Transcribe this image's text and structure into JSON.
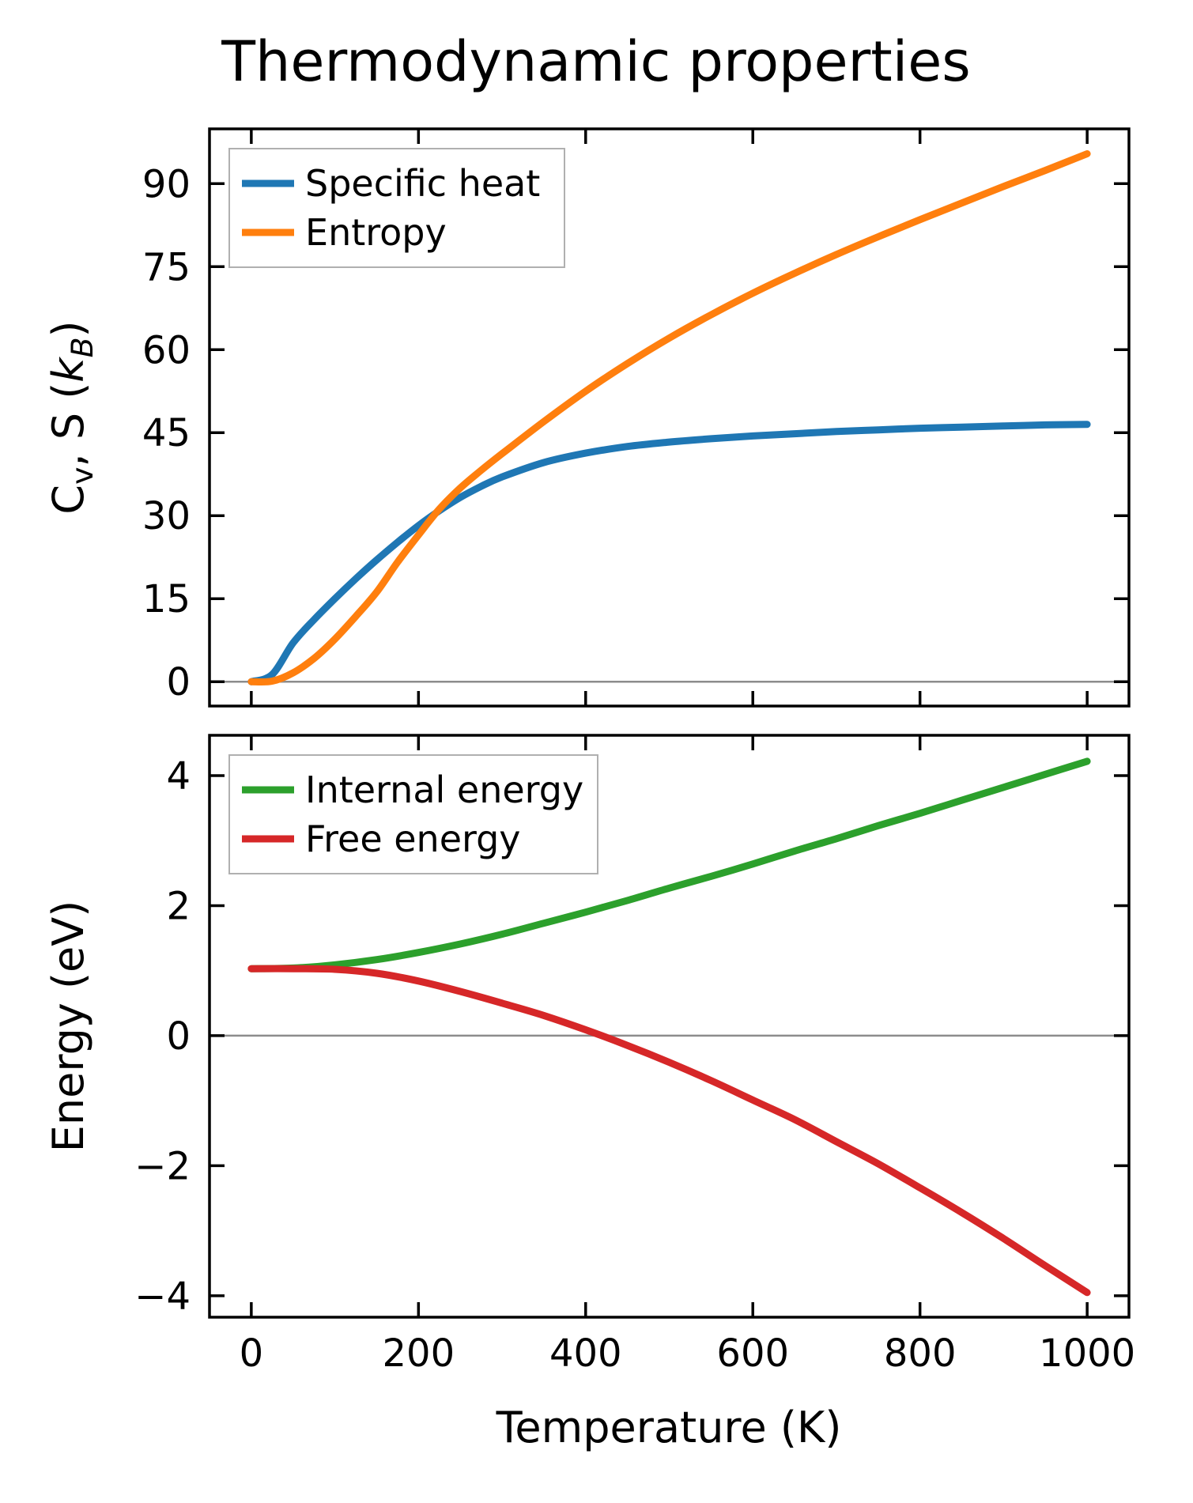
{
  "figure": {
    "title": "Thermodynamic properties",
    "xlabel": "Temperature (K)"
  },
  "colors": {
    "specific_heat": "#1f77b4",
    "entropy": "#ff7f0e",
    "internal_energy": "#2ca02c",
    "free_energy": "#d62728",
    "zero_line": "#8c8c8c",
    "spine": "#000000",
    "legend_border": "#b0b0b0"
  },
  "chart_data": [
    {
      "type": "line",
      "ylabel_parts": [
        {
          "t": "C"
        },
        {
          "t": "v",
          "sub": true
        },
        {
          "t": ", S ("
        },
        {
          "t": "k",
          "italic": true
        },
        {
          "t": "B",
          "sub": true,
          "italic": true
        },
        {
          "t": ")"
        }
      ],
      "xlim": [
        -50,
        1050
      ],
      "ylim": [
        -4.4,
        99.9
      ],
      "xticks": {
        "positions": [
          0,
          200,
          400,
          600,
          800,
          1000
        ],
        "labels": []
      },
      "yticks": {
        "positions": [
          0,
          15,
          30,
          45,
          60,
          75,
          90
        ],
        "labels": [
          "0",
          "15",
          "30",
          "45",
          "60",
          "75",
          "90"
        ]
      },
      "zero_line": true,
      "grid": false,
      "legend_position": "upper left",
      "x": [
        0,
        25,
        50,
        75,
        100,
        125,
        150,
        175,
        200,
        225,
        250,
        275,
        300,
        350,
        400,
        450,
        500,
        550,
        600,
        650,
        700,
        750,
        800,
        850,
        900,
        950,
        1000
      ],
      "series": [
        {
          "name": "Specific heat",
          "color_key": "specific_heat",
          "values": [
            0,
            1.3,
            7.0,
            11.2,
            15.0,
            18.6,
            22.0,
            25.2,
            28.2,
            30.9,
            33.3,
            35.3,
            37.0,
            39.6,
            41.3,
            42.5,
            43.3,
            43.9,
            44.4,
            44.8,
            45.2,
            45.5,
            45.8,
            46.0,
            46.2,
            46.4,
            46.5
          ]
        },
        {
          "name": "Entropy",
          "color_key": "entropy",
          "values": [
            0,
            0.1,
            1.6,
            4.2,
            7.7,
            11.8,
            16.2,
            21.6,
            26.5,
            31.2,
            35.0,
            38.2,
            41.2,
            47.0,
            52.5,
            57.5,
            62.1,
            66.3,
            70.2,
            73.8,
            77.2,
            80.4,
            83.5,
            86.5,
            89.5,
            92.4,
            95.4
          ]
        }
      ]
    },
    {
      "type": "line",
      "ylabel_parts": [
        {
          "t": "Energy (eV)"
        }
      ],
      "xlim": [
        -50,
        1050
      ],
      "ylim": [
        -4.33,
        4.62
      ],
      "xticks": {
        "positions": [
          0,
          200,
          400,
          600,
          800,
          1000
        ],
        "labels": [
          "0",
          "200",
          "400",
          "600",
          "800",
          "1000"
        ]
      },
      "yticks": {
        "positions": [
          -4,
          -2,
          0,
          2,
          4
        ],
        "labels": [
          "−4",
          "−2",
          "0",
          "2",
          "4"
        ]
      },
      "zero_line": true,
      "grid": false,
      "legend_position": "upper left",
      "x": [
        0,
        50,
        100,
        150,
        200,
        250,
        300,
        350,
        400,
        450,
        500,
        550,
        600,
        650,
        700,
        750,
        800,
        850,
        900,
        950,
        1000
      ],
      "series": [
        {
          "name": "Internal energy",
          "color_key": "internal_energy",
          "values": [
            1.03,
            1.04,
            1.09,
            1.17,
            1.28,
            1.41,
            1.56,
            1.73,
            1.9,
            2.08,
            2.27,
            2.45,
            2.64,
            2.84,
            3.03,
            3.23,
            3.42,
            3.62,
            3.82,
            4.02,
            4.22
          ]
        },
        {
          "name": "Free energy",
          "color_key": "free_energy",
          "values": [
            1.03,
            1.03,
            1.02,
            0.96,
            0.84,
            0.68,
            0.5,
            0.31,
            0.09,
            -0.15,
            -0.41,
            -0.69,
            -0.99,
            -1.29,
            -1.63,
            -1.97,
            -2.34,
            -2.72,
            -3.12,
            -3.54,
            -3.95
          ]
        }
      ]
    }
  ]
}
